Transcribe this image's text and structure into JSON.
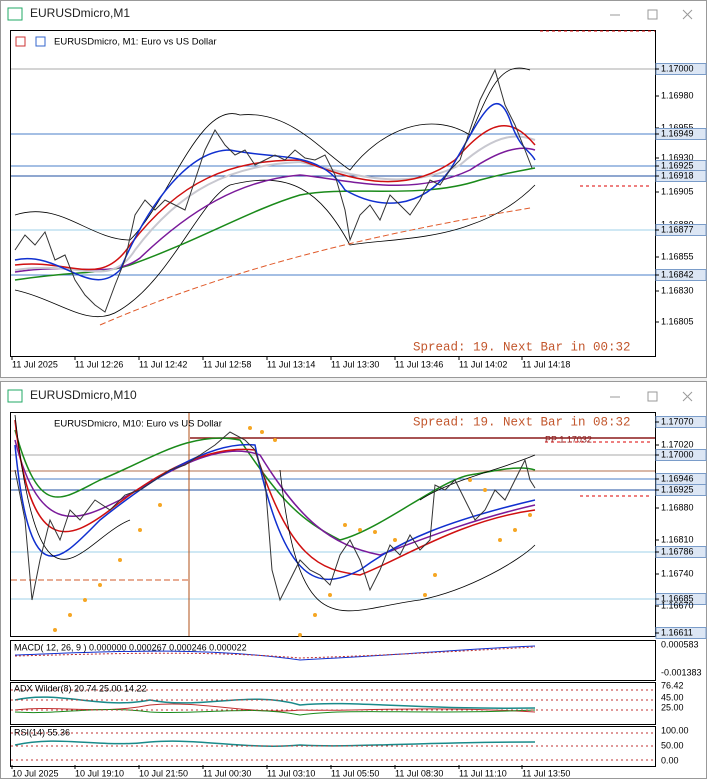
{
  "windows": [
    {
      "title": "EURUSDmicro,M1",
      "header": "EURUSDmicro, M1:  Euro vs US Dollar",
      "status": "Spread: 19. Next Bar in 00:32",
      "price_labels": [
        "1.17000",
        "1.16980",
        "1.16955",
        "1.16949",
        "1.16930",
        "1.16925",
        "1.16918",
        "1.16905",
        "1.16880",
        "1.16877",
        "1.16855",
        "1.16842",
        "1.16830",
        "1.16805"
      ],
      "time_labels": [
        "11 Jul 2025",
        "11 Jul 12:26",
        "11 Jul 12:42",
        "11 Jul 12:58",
        "11 Jul 13:14",
        "11 Jul 13:30",
        "11 Jul 13:46",
        "11 Jul 14:02",
        "11 Jul 14:18"
      ]
    },
    {
      "title": "EURUSDmicro,M10",
      "header": "EURUSDmicro, M10:  Euro vs US Dollar",
      "status": "Spread: 19. Next Bar in 08:32",
      "pivot": "PP 1.17032",
      "price_labels": [
        "1.17070",
        "1.17020",
        "1.17000",
        "1.16946",
        "1.16925",
        "1.16880",
        "1.16810",
        "1.16786",
        "1.16740",
        "1.16685",
        "1.16670",
        "1.16611"
      ],
      "time_labels": [
        "10 Jul 2025",
        "10 Jul 19:10",
        "10 Jul 21:50",
        "11 Jul 00:30",
        "11 Jul 03:10",
        "11 Jul 05:50",
        "11 Jul 08:30",
        "11 Jul 11:10",
        "11 Jul 13:50"
      ],
      "macd": {
        "label": "MACD( 12, 26, 9 ) 0.000000 0.000267 0.000246 0.000022",
        "scale": [
          "0.000583",
          "-0.001383"
        ]
      },
      "adx": {
        "label": "ADX Wilder(8) 20.74 25.00 14.22",
        "scale": [
          "76.42",
          "45.00",
          "25.00"
        ]
      },
      "rsi": {
        "label": "RSI(14) 55.36",
        "scale": [
          "100.00",
          "50.00",
          "0.00"
        ]
      }
    }
  ]
}
